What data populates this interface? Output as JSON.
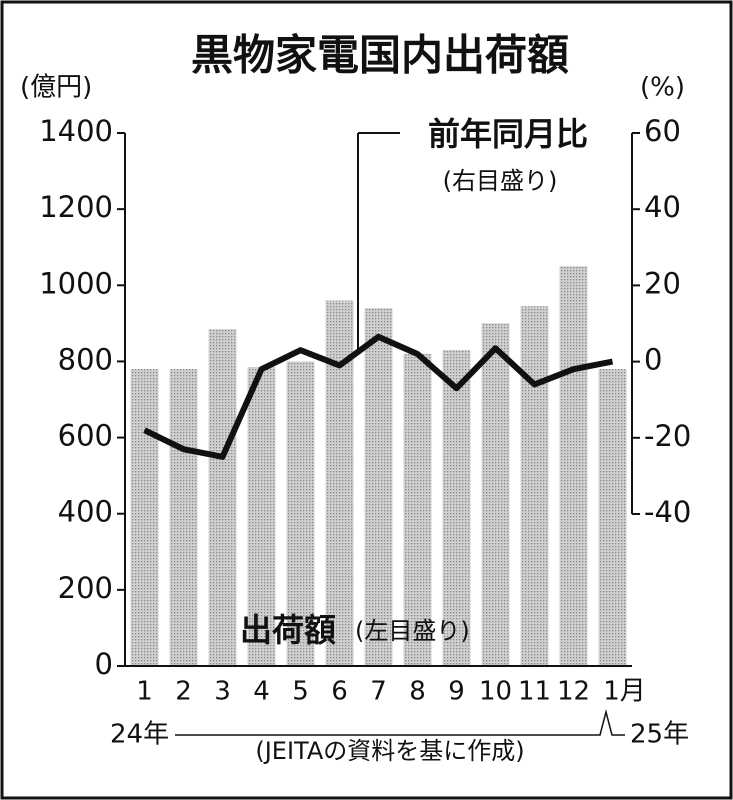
{
  "chart_data": {
    "type": "bar_line",
    "title": "黒物家電国内出荷額",
    "y_label": "(億円)",
    "y2_label": "(%)",
    "categories": [
      "1",
      "2",
      "3",
      "4",
      "5",
      "6",
      "7",
      "8",
      "9",
      "10",
      "11",
      "12",
      "1月"
    ],
    "series": [
      {
        "name": "出荷額",
        "note": "(左目盛り)",
        "type": "bar",
        "color": "#b8b8b8",
        "axis": "y",
        "values": [
          780,
          780,
          885,
          785,
          800,
          960,
          940,
          820,
          830,
          900,
          945,
          1050,
          780
        ]
      },
      {
        "name": "前年同月比",
        "note": "(右目盛り)",
        "type": "line",
        "color": "#111111",
        "axis": "y2",
        "values": [
          -18,
          -23,
          -25,
          -2,
          3,
          -1,
          6.5,
          2,
          -7,
          3.5,
          -6,
          -2,
          0
        ]
      }
    ],
    "ylim": [
      0,
      1400
    ],
    "yticks": [
      0,
      200,
      400,
      600,
      800,
      1000,
      1200,
      1400
    ],
    "y2lim": [
      -40,
      60
    ],
    "y2ticks": [
      -40,
      -20,
      0,
      20,
      40,
      60
    ],
    "year_labels": [
      "24年",
      "25年"
    ],
    "source": "(JEITAの資料を基に作成)"
  }
}
